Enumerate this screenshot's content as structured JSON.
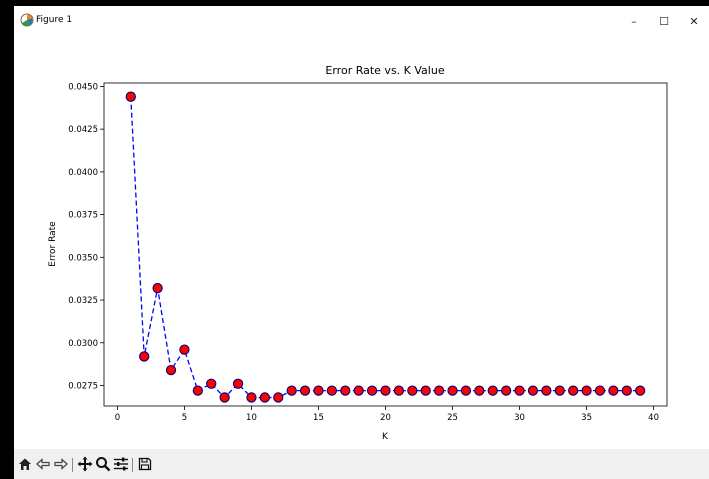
{
  "window": {
    "title": "Figure 1",
    "icon": "matplotlib-logo-icon",
    "controls": {
      "minimize": "–",
      "maximize": "☐",
      "close": "✕"
    }
  },
  "toolbar": {
    "buttons": [
      {
        "name": "home-icon",
        "label": "Home"
      },
      {
        "name": "back-icon",
        "label": "Back"
      },
      {
        "name": "forward-icon",
        "label": "Forward"
      },
      {
        "name": "pan-icon",
        "label": "Pan"
      },
      {
        "name": "zoom-icon",
        "label": "Zoom"
      },
      {
        "name": "configure-subplots-icon",
        "label": "Subplots"
      },
      {
        "name": "save-icon",
        "label": "Save"
      }
    ]
  },
  "colors": {
    "line": "#0000ff",
    "marker_face": "#ff0000",
    "marker_edge": "#000080"
  },
  "chart_data": {
    "type": "line",
    "title": "Error Rate vs. K Value",
    "xlabel": "K",
    "ylabel": "Error Rate",
    "xlim": [
      -1,
      41
    ],
    "ylim": [
      0.0263,
      0.0452
    ],
    "xticks": [
      0,
      5,
      10,
      15,
      20,
      25,
      30,
      35,
      40
    ],
    "xtick_labels": [
      "0",
      "5",
      "10",
      "15",
      "20",
      "25",
      "30",
      "35",
      "40"
    ],
    "yticks": [
      0.0275,
      0.03,
      0.0325,
      0.035,
      0.0375,
      0.04,
      0.0425,
      0.045
    ],
    "ytick_labels": [
      "0.0275",
      "0.0300",
      "0.0325",
      "0.0350",
      "0.0375",
      "0.0400",
      "0.0425",
      "0.0450"
    ],
    "grid": false,
    "series": [
      {
        "line_style": "dashed",
        "marker": "o",
        "x": [
          1,
          2,
          3,
          4,
          5,
          6,
          7,
          8,
          9,
          10,
          11,
          12,
          13,
          14,
          15,
          16,
          17,
          18,
          19,
          20,
          21,
          22,
          23,
          24,
          25,
          26,
          27,
          28,
          29,
          30,
          31,
          32,
          33,
          34,
          35,
          36,
          37,
          38,
          39
        ],
        "values": [
          0.0444,
          0.0292,
          0.0332,
          0.0284,
          0.0296,
          0.0272,
          0.0276,
          0.0268,
          0.0276,
          0.0268,
          0.0268,
          0.0268,
          0.0272,
          0.0272,
          0.0272,
          0.0272,
          0.0272,
          0.0272,
          0.0272,
          0.0272,
          0.0272,
          0.0272,
          0.0272,
          0.0272,
          0.0272,
          0.0272,
          0.0272,
          0.0272,
          0.0272,
          0.0272,
          0.0272,
          0.0272,
          0.0272,
          0.0272,
          0.0272,
          0.0272,
          0.0272,
          0.0272,
          0.0272
        ]
      }
    ]
  }
}
